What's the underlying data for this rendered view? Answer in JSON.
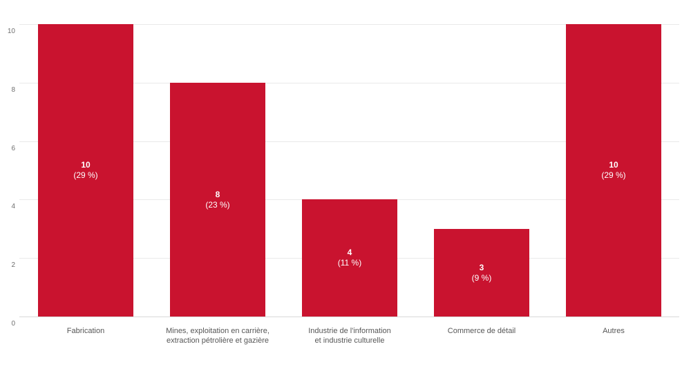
{
  "chart_data": {
    "type": "bar",
    "title": "",
    "xlabel": "",
    "ylabel": "",
    "ylim": [
      0,
      10
    ],
    "yticks": [
      0,
      2,
      4,
      6,
      8,
      10
    ],
    "grid": true,
    "legend": false,
    "bar_color": "#c9132f",
    "bar_label_color": "#ffffff",
    "gridline_color": "#e9e9e9",
    "axis_line_color": "#d8d8d8",
    "categories": [
      {
        "lines": [
          "Fabrication"
        ]
      },
      {
        "lines": [
          "Mines, exploitation en carrière,",
          "extraction pétrolière et gazière"
        ]
      },
      {
        "lines": [
          "Industrie de l'information",
          "et industrie culturelle"
        ]
      },
      {
        "lines": [
          "Commerce de détail"
        ]
      },
      {
        "lines": [
          "Autres"
        ]
      }
    ],
    "bars": [
      {
        "value": 10,
        "value_label": "10",
        "percent_label": "(29 %)"
      },
      {
        "value": 8,
        "value_label": "8",
        "percent_label": "(23 %)"
      },
      {
        "value": 4,
        "value_label": "4",
        "percent_label": "(11 %)"
      },
      {
        "value": 3,
        "value_label": "3",
        "percent_label": "(9 %)"
      },
      {
        "value": 10,
        "value_label": "10",
        "percent_label": "(29 %)"
      }
    ]
  }
}
